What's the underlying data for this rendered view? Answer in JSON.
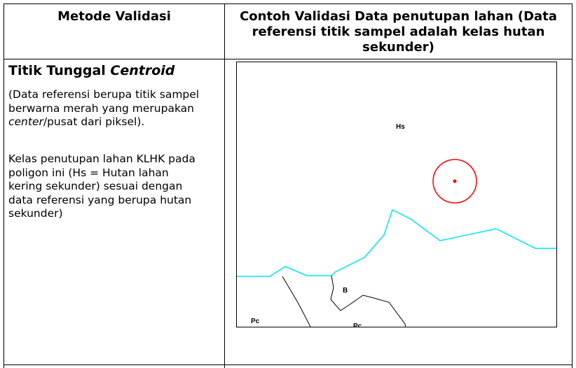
{
  "table": {
    "header": {
      "col1": "Metode Validasi",
      "col2_line1": "Contoh Validasi Data penutupan lahan (Data",
      "col2_line2": "referensi titik sampel adalah kelas hutan",
      "col2_line3": "sekunder)"
    },
    "row": {
      "title_plain": "Titik Tunggal ",
      "title_italic": "Centroid",
      "desc1_line1": "(Data referensi berupa titik sampel",
      "desc1_line2": "berwarna merah yang merupakan",
      "desc1_line3_italic": "center",
      "desc1_line3_rest": "/pusat dari piksel).",
      "desc2_line1": "Kelas penutupan lahan KLHK pada",
      "desc2_line2": "poligon ini (Hs = Hutan lahan",
      "desc2_line3": "kering sekunder) sesuai dengan",
      "desc2_line4": "data referensi yang berupa hutan",
      "desc2_line5": "sekunder)"
    }
  },
  "map": {
    "labels": {
      "hs": "Hs",
      "b": "B",
      "pc_left": "Pc",
      "pc_bottom": "Pc"
    },
    "colors": {
      "boundary_cyan": "#00e5ee",
      "boundary_black": "#000000",
      "sample_point": "#ff0000"
    }
  }
}
